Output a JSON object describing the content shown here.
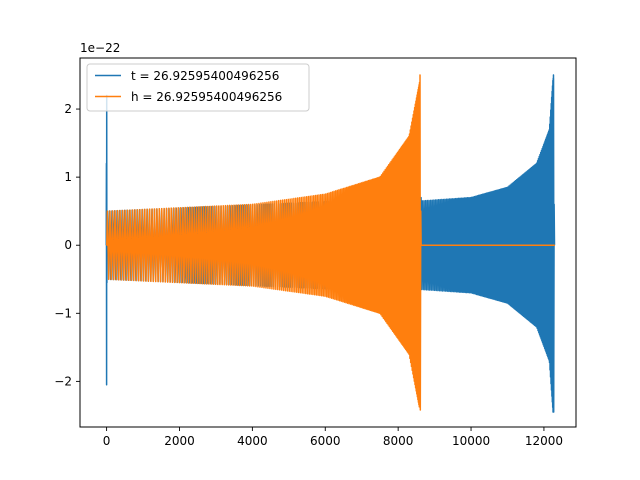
{
  "chart_data": {
    "type": "line",
    "title": "",
    "xlabel": "",
    "ylabel": "",
    "y_offset_label": "1e−22",
    "xlim": [
      -730,
      12880
    ],
    "ylim": [
      -2.67,
      2.75
    ],
    "xticks": [
      0,
      2000,
      4000,
      6000,
      8000,
      10000,
      12000
    ],
    "xtick_labels": [
      "0",
      "2000",
      "4000",
      "6000",
      "8000",
      "10000",
      "12000"
    ],
    "yticks": [
      -2,
      -1,
      0,
      1,
      2
    ],
    "ytick_labels": [
      "−2",
      "−1",
      "0",
      "1",
      "2"
    ],
    "grid": false,
    "legend_position": "upper-left",
    "series": [
      {
        "name": "t = 26.92595400496256",
        "color": "#1f77b4",
        "shape": "oscillating strain, chirp ending near x=12290",
        "envelope_points": [
          {
            "x": 0,
            "y": 2.2
          },
          {
            "x": 0,
            "y": -2.05
          },
          {
            "x": 500,
            "y": 0.0
          },
          {
            "x": 8630,
            "y": 0.65
          },
          {
            "x": 10000,
            "y": 0.7
          },
          {
            "x": 11000,
            "y": 0.85
          },
          {
            "x": 11800,
            "y": 1.2
          },
          {
            "x": 12150,
            "y": 1.7
          },
          {
            "x": 12260,
            "y": 2.5
          },
          {
            "x": 12260,
            "y": -2.42
          },
          {
            "x": 12300,
            "y": 0.0
          }
        ]
      },
      {
        "name": "h = 26.92595400496256",
        "color": "#ff7f0e",
        "shape": "oscillating strain, chirp ending near x=8630, flat 0 afterwards",
        "envelope_points": [
          {
            "x": 0,
            "y": 0.5
          },
          {
            "x": 2000,
            "y": 0.55
          },
          {
            "x": 4000,
            "y": 0.6
          },
          {
            "x": 6000,
            "y": 0.75
          },
          {
            "x": 7500,
            "y": 1.0
          },
          {
            "x": 8300,
            "y": 1.6
          },
          {
            "x": 8600,
            "y": 2.5
          },
          {
            "x": 8600,
            "y": -2.42
          },
          {
            "x": 8630,
            "y": 0.0
          },
          {
            "x": 12300,
            "y": 0.0
          }
        ]
      }
    ]
  }
}
